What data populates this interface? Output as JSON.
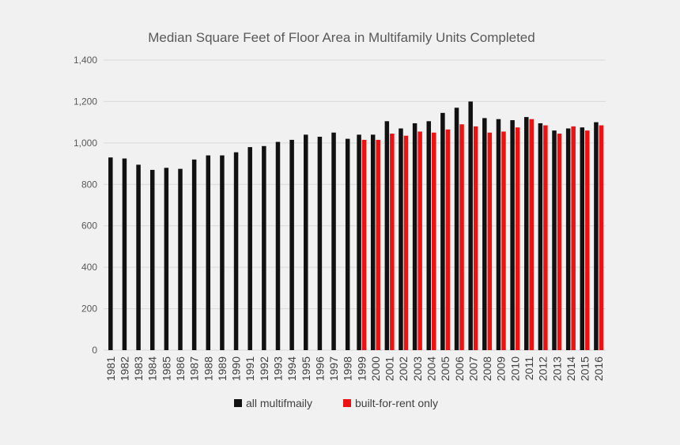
{
  "chart_data": {
    "type": "bar",
    "title": "Median Square Feet of Floor Area in Multifamily Units Completed",
    "xlabel": "",
    "ylabel": "",
    "ylim": [
      0,
      1400
    ],
    "yticks": [
      "0",
      "200",
      "400",
      "600",
      "800",
      "1,000",
      "1,200",
      "1,400"
    ],
    "grid": true,
    "legend_position": "bottom",
    "categories": [
      "1981",
      "1982",
      "1983",
      "1984",
      "1985",
      "1986",
      "1987",
      "1988",
      "1989",
      "1990",
      "1991",
      "1992",
      "1993",
      "1994",
      "1995",
      "1996",
      "1997",
      "1998",
      "1999",
      "2000",
      "2001",
      "2002",
      "2003",
      "2004",
      "2005",
      "2006",
      "2007",
      "2008",
      "2009",
      "2010",
      "2011",
      "2012",
      "2013",
      "2014",
      "2015",
      "2016"
    ],
    "series": [
      {
        "name": "all multifmaily",
        "color": "#111111",
        "values": [
          930,
          925,
          895,
          870,
          880,
          875,
          920,
          940,
          940,
          955,
          980,
          985,
          1005,
          1015,
          1040,
          1030,
          1050,
          1020,
          1040,
          1040,
          1105,
          1070,
          1095,
          1105,
          1145,
          1170,
          1200,
          1120,
          1115,
          1110,
          1125,
          1095,
          1060,
          1070,
          1075,
          1100
        ]
      },
      {
        "name": "built-for-rent only",
        "color": "#ee1111",
        "values": [
          null,
          null,
          null,
          null,
          null,
          null,
          null,
          null,
          null,
          null,
          null,
          null,
          null,
          null,
          null,
          null,
          null,
          null,
          1015,
          1015,
          1045,
          1035,
          1055,
          1050,
          1065,
          1090,
          1080,
          1050,
          1055,
          1075,
          1115,
          1085,
          1045,
          1080,
          1060,
          1085
        ]
      }
    ]
  }
}
